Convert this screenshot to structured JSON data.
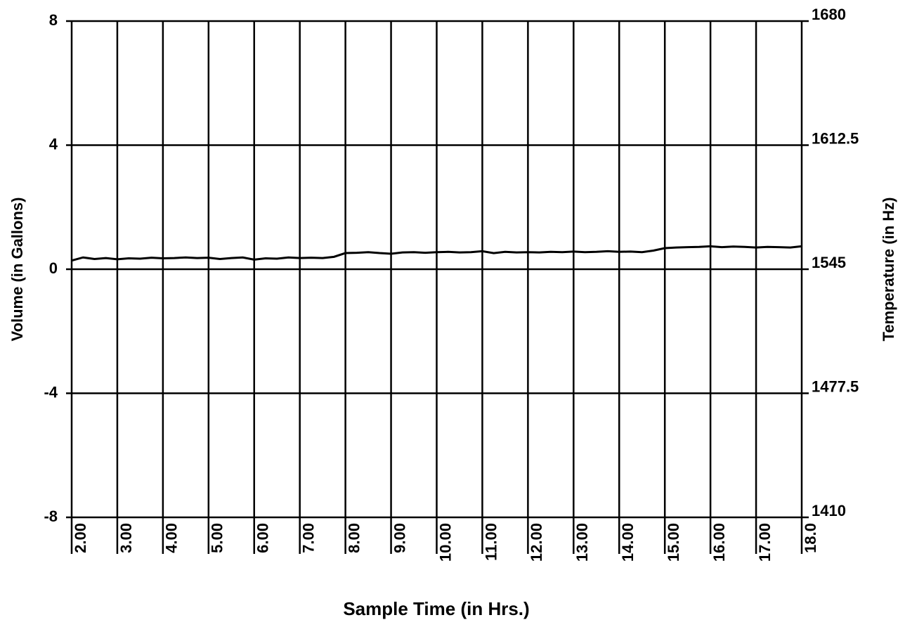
{
  "chart_data": {
    "type": "line",
    "xlabel": "Sample Time (in Hrs.)",
    "ylabel": "Volume (in Gallons)",
    "y2label": "Temperature (in Hz)",
    "x": [
      2,
      2.25,
      2.5,
      2.75,
      3,
      3.25,
      3.5,
      3.75,
      4,
      4.25,
      4.5,
      4.75,
      5,
      5.25,
      5.5,
      5.75,
      6,
      6.25,
      6.5,
      6.75,
      7,
      7.25,
      7.5,
      7.75,
      8,
      8.25,
      8.5,
      8.75,
      9,
      9.25,
      9.5,
      9.75,
      10,
      10.25,
      10.5,
      10.75,
      11,
      11.25,
      11.5,
      11.75,
      12,
      12.25,
      12.5,
      12.75,
      13,
      13.25,
      13.5,
      13.75,
      14,
      14.25,
      14.5,
      14.75,
      15,
      15.25,
      15.5,
      15.75,
      16,
      16.25,
      16.5,
      16.75,
      17,
      17.25,
      17.5,
      17.75,
      18
    ],
    "series": [
      {
        "color": "#000000",
        "values": [
          0.28,
          0.38,
          0.33,
          0.36,
          0.32,
          0.35,
          0.34,
          0.37,
          0.35,
          0.36,
          0.38,
          0.36,
          0.37,
          0.33,
          0.36,
          0.38,
          0.31,
          0.35,
          0.34,
          0.38,
          0.36,
          0.37,
          0.36,
          0.4,
          0.52,
          0.53,
          0.55,
          0.52,
          0.5,
          0.54,
          0.55,
          0.53,
          0.55,
          0.56,
          0.54,
          0.55,
          0.58,
          0.52,
          0.56,
          0.54,
          0.55,
          0.54,
          0.56,
          0.55,
          0.57,
          0.55,
          0.56,
          0.58,
          0.56,
          0.57,
          0.55,
          0.6,
          0.68,
          0.7,
          0.71,
          0.72,
          0.74,
          0.71,
          0.73,
          0.72,
          0.7,
          0.72,
          0.71,
          0.7,
          0.74
        ]
      }
    ],
    "xlim": [
      2,
      18
    ],
    "xticks": [
      {
        "value": 2,
        "label": "2.00"
      },
      {
        "value": 3,
        "label": "3.00"
      },
      {
        "value": 4,
        "label": "4.00"
      },
      {
        "value": 5,
        "label": "5.00"
      },
      {
        "value": 6,
        "label": "6.00"
      },
      {
        "value": 7,
        "label": "7.00"
      },
      {
        "value": 8,
        "label": "8.00"
      },
      {
        "value": 9,
        "label": "9.00"
      },
      {
        "value": 10,
        "label": "10.00"
      },
      {
        "value": 11,
        "label": "11.00"
      },
      {
        "value": 12,
        "label": "12.00"
      },
      {
        "value": 13,
        "label": "13.00"
      },
      {
        "value": 14,
        "label": "14.00"
      },
      {
        "value": 15,
        "label": "15.00"
      },
      {
        "value": 16,
        "label": "16.00"
      },
      {
        "value": 17,
        "label": "17.00"
      },
      {
        "value": 18,
        "label": "18.0"
      }
    ],
    "ylim": [
      -8,
      8
    ],
    "yticks": [
      -8,
      -4,
      0,
      4,
      8
    ],
    "y2lim": [
      1410,
      1680
    ],
    "y2ticks": [
      1410,
      1477.5,
      1545,
      1612.5,
      1680
    ],
    "grid": true
  }
}
